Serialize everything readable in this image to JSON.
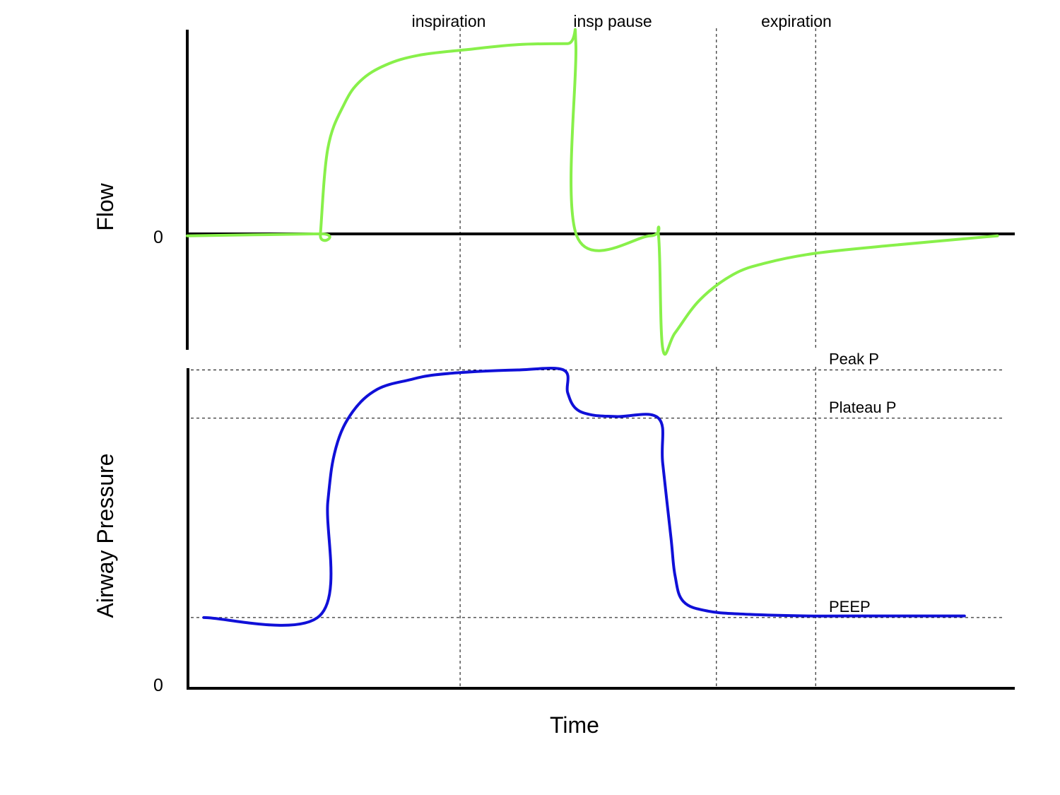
{
  "chart_data": {
    "type": "line",
    "title": "",
    "xlabel": "Time",
    "phase_labels": [
      "inspiration",
      "insp pause",
      "expiration"
    ],
    "phase_boundaries": [
      0.33,
      0.64,
      0.76
    ],
    "panels": [
      {
        "id": "flow",
        "ylabel": "Flow",
        "zero_label": "0",
        "ylim": [
          -0.58,
          1.04
        ],
        "series": [
          {
            "color": "#88f04a",
            "x": [
              0,
              0.16,
              0.161,
              0.17,
              0.19,
              0.21,
              0.24,
              0.28,
              0.34,
              0.4,
              0.46,
              0.47,
              0.471,
              0.56,
              0.57,
              0.575,
              0.59,
              0.62,
              0.66,
              0.7,
              0.76,
              0.85,
              0.98
            ],
            "y": [
              0,
              0.01,
              0.01,
              0.45,
              0.68,
              0.8,
              0.88,
              0.93,
              0.96,
              0.985,
              0.99,
              0.985,
              0,
              0,
              0,
              -0.58,
              -0.5,
              -0.33,
              -0.2,
              -0.14,
              -0.09,
              -0.05,
              0
            ]
          }
        ],
        "reference_lines": []
      },
      {
        "id": "pressure",
        "ylabel": "Airway Pressure",
        "zero_label": "0",
        "ylim": [
          0,
          1
        ],
        "series": [
          {
            "color": "#1010d8",
            "x": [
              0.02,
              0.16,
              0.17,
              0.18,
              0.2,
              0.23,
              0.27,
              0.3,
              0.35,
              0.4,
              0.455,
              0.46,
              0.47,
              0.49,
              0.52,
              0.57,
              0.575,
              0.585,
              0.59,
              0.6,
              0.63,
              0.68,
              0.75,
              0.8,
              0.94
            ],
            "y": [
              0.22,
              0.225,
              0.58,
              0.75,
              0.86,
              0.93,
              0.96,
              0.975,
              0.985,
              0.99,
              0.99,
              0.92,
              0.87,
              0.85,
              0.845,
              0.84,
              0.7,
              0.47,
              0.35,
              0.27,
              0.24,
              0.23,
              0.225,
              0.225,
              0.225
            ]
          }
        ],
        "reference_lines": [
          {
            "label": "Peak P",
            "y": 0.99
          },
          {
            "label": "Plateau P",
            "y": 0.84
          },
          {
            "label": "PEEP",
            "y": 0.22
          }
        ]
      }
    ]
  }
}
